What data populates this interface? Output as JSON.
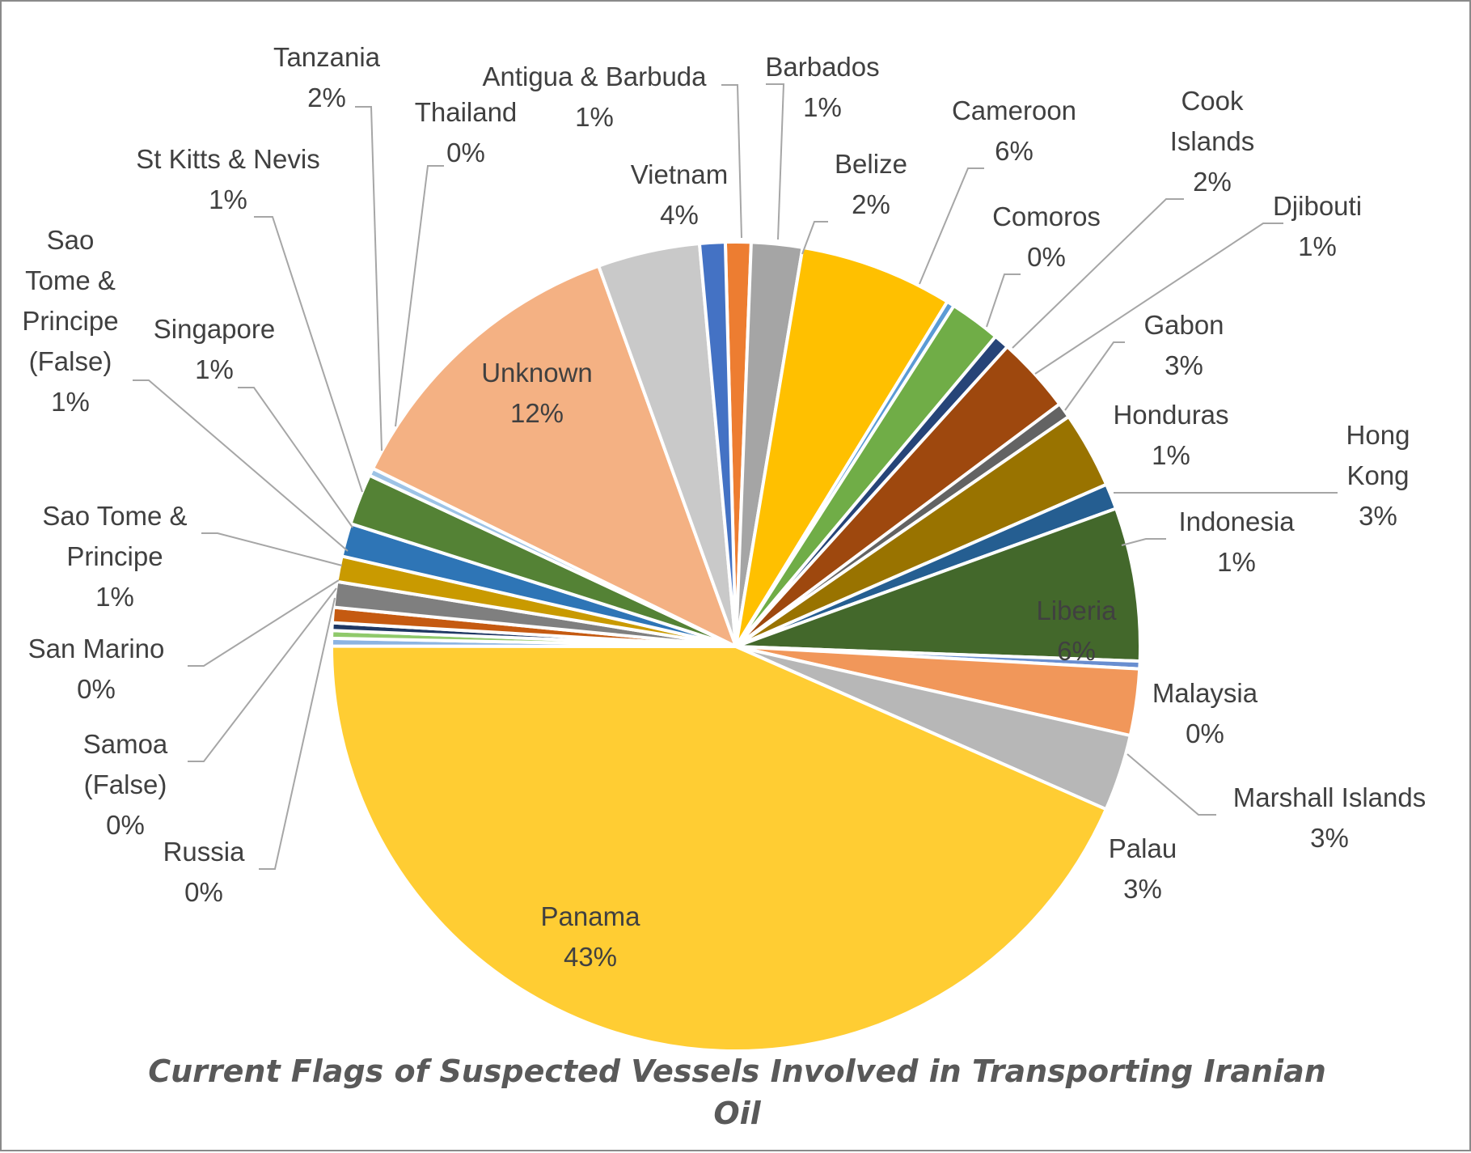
{
  "chart_data": {
    "type": "pie",
    "title_lines": [
      "Current Flags of  Suspected Vessels Involved in Transporting Iranian",
      "Oil"
    ],
    "slices": [
      {
        "name": "Barbados",
        "label_lines": [
          "Barbados",
          "1%"
        ],
        "value": 1.0,
        "color": "#ED7D31"
      },
      {
        "name": "Belize",
        "label_lines": [
          "Belize",
          "2%"
        ],
        "value": 2.0,
        "color": "#A5A5A5"
      },
      {
        "name": "Cameroon",
        "label_lines": [
          "Cameroon",
          "6%"
        ],
        "value": 6.0,
        "color": "#FFC000"
      },
      {
        "name": "Comoros",
        "label_lines": [
          "Comoros",
          "0%"
        ],
        "value": 0.3,
        "color": "#5B9BD5"
      },
      {
        "name": "Cook Islands",
        "label_lines": [
          "Cook",
          "Islands",
          "2%"
        ],
        "value": 2.0,
        "color": "#70AD47"
      },
      {
        "name": "Djibouti",
        "label_lines": [
          "Djibouti",
          "1%"
        ],
        "value": 0.6,
        "color": "#264478"
      },
      {
        "name": "Gabon",
        "label_lines": [
          "Gabon",
          "3%"
        ],
        "value": 3.0,
        "color": "#9E480E"
      },
      {
        "name": "Honduras",
        "label_lines": [
          "Honduras",
          "1%"
        ],
        "value": 0.6,
        "color": "#636363"
      },
      {
        "name": "Hong Kong",
        "label_lines": [
          "Hong",
          "Kong",
          "3%"
        ],
        "value": 3.0,
        "color": "#997300"
      },
      {
        "name": "Indonesia",
        "label_lines": [
          "Indonesia",
          "1%"
        ],
        "value": 1.0,
        "color": "#255E91"
      },
      {
        "name": "Liberia",
        "label_lines": [
          "Liberia",
          "6%"
        ],
        "value": 6.0,
        "color": "#43682B"
      },
      {
        "name": "Malaysia",
        "label_lines": [
          "Malaysia",
          "0%"
        ],
        "value": 0.3,
        "color": "#698ED0"
      },
      {
        "name": "Marshall Islands",
        "label_lines": [
          "Marshall Islands",
          "3%"
        ],
        "value": 2.6,
        "color": "#F1975A"
      },
      {
        "name": "Palau",
        "label_lines": [
          "Palau",
          "3%"
        ],
        "value": 3.0,
        "color": "#B7B7B7"
      },
      {
        "name": "Panama",
        "label_lines": [
          "Panama",
          "43%"
        ],
        "value": 42.6,
        "color": "#FFCD33"
      },
      {
        "name": "Russia",
        "label_lines": [
          "Russia",
          "0%"
        ],
        "value": 0.3,
        "color": "#8CB4E2"
      },
      {
        "name": "Samoa (False)",
        "label_lines": [
          "Samoa",
          "(False)",
          "0%"
        ],
        "value": 0.3,
        "color": "#8FC96B"
      },
      {
        "name": "San Marino",
        "label_lines": [
          "San Marino",
          "0%"
        ],
        "value": 0.3,
        "color": "#1F3864"
      },
      {
        "name": "Sao Tome & Principe",
        "label_lines": [
          "Sao Tome &",
          "Principe",
          "1%"
        ],
        "value": 0.6,
        "color": "#C55A11"
      },
      {
        "name": "Sao Tome & Principe (False)",
        "label_lines": [
          "Sao",
          "Tome &",
          "Principe",
          "(False)",
          "1%"
        ],
        "value": 1.0,
        "color": "#7F7F7F"
      },
      {
        "name": "Singapore",
        "label_lines": [
          "Singapore",
          "1%"
        ],
        "value": 1.0,
        "color": "#C99A00"
      },
      {
        "name": "St Kitts & Nevis",
        "label_lines": [
          "St Kitts & Nevis",
          "1%"
        ],
        "value": 1.3,
        "color": "#2E75B6"
      },
      {
        "name": "Tanzania",
        "label_lines": [
          "Tanzania",
          "2%"
        ],
        "value": 2.0,
        "color": "#548235"
      },
      {
        "name": "Thailand",
        "label_lines": [
          "Thailand",
          "0%"
        ],
        "value": 0.3,
        "color": "#9DC3E6"
      },
      {
        "name": "Unknown",
        "label_lines": [
          "Unknown",
          "12%"
        ],
        "value": 12.0,
        "color": "#F4B183"
      },
      {
        "name": "Vietnam",
        "label_lines": [
          "Vietnam",
          "4%"
        ],
        "value": 4.0,
        "color": "#C9C9C9"
      },
      {
        "name": "Antigua & Barbuda",
        "label_lines": [
          "Antigua & Barbuda",
          "1%"
        ],
        "value": 1.0,
        "color": "#4472C4"
      }
    ]
  }
}
